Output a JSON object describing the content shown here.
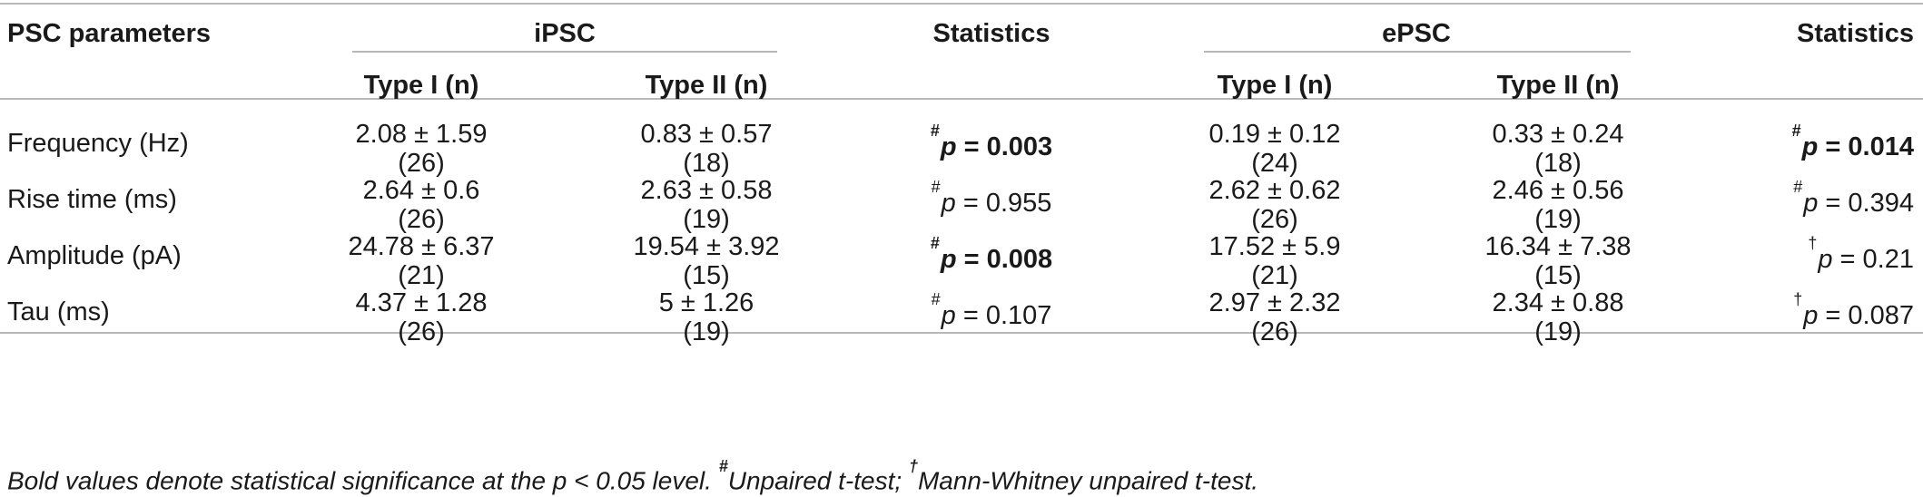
{
  "table": {
    "header": {
      "col_param": "PSC parameters",
      "group_ipsc": "iPSC",
      "group_epsc": "ePSC",
      "stats1": "Statistics",
      "stats2": "Statistics",
      "ipsc_type1": "Type I (n)",
      "ipsc_type2": "Type II (n)",
      "epsc_type1": "Type I (n)",
      "epsc_type2": "Type II (n)"
    },
    "rows": [
      {
        "param": "Frequency (Hz)",
        "ipsc_t1_val": "2.08 ± 1.59",
        "ipsc_t1_n": "(26)",
        "ipsc_t2_val": "0.83 ± 0.57",
        "ipsc_t2_n": "(18)",
        "stat1_mark": "#",
        "stat1_p": "p",
        "stat1_rest": " = 0.003",
        "epsc_t1_val": "0.19 ± 0.12",
        "epsc_t1_n": "(24)",
        "epsc_t2_val": "0.33 ± 0.24",
        "epsc_t2_n": "(18)",
        "stat2_mark": "#",
        "stat2_p": "p",
        "stat2_rest": " = 0.014"
      },
      {
        "param": "Rise time (ms)",
        "ipsc_t1_val": "2.64 ± 0.6",
        "ipsc_t1_n": "(26)",
        "ipsc_t2_val": "2.63 ± 0.58",
        "ipsc_t2_n": "(19)",
        "stat1_mark": "#",
        "stat1_p": "p",
        "stat1_rest": " = 0.955",
        "epsc_t1_val": "2.62 ± 0.62",
        "epsc_t1_n": "(26)",
        "epsc_t2_val": "2.46 ± 0.56",
        "epsc_t2_n": "(19)",
        "stat2_mark": "#",
        "stat2_p": "p",
        "stat2_rest": " = 0.394"
      },
      {
        "param": "Amplitude (pA)",
        "ipsc_t1_val": "24.78 ± 6.37",
        "ipsc_t1_n": "(21)",
        "ipsc_t2_val": "19.54 ± 3.92",
        "ipsc_t2_n": "(15)",
        "stat1_mark": "#",
        "stat1_p": "p",
        "stat1_rest": " = 0.008",
        "epsc_t1_val": "17.52 ± 5.9",
        "epsc_t1_n": "(21)",
        "epsc_t2_val": "16.34 ± 7.38",
        "epsc_t2_n": "(15)",
        "stat2_mark": "†",
        "stat2_p": "p",
        "stat2_rest": " = 0.21"
      },
      {
        "param": "Tau (ms)",
        "ipsc_t1_val": "4.37 ± 1.28",
        "ipsc_t1_n": "(26)",
        "ipsc_t2_val": "5 ± 1.26",
        "ipsc_t2_n": "(19)",
        "stat1_mark": "#",
        "stat1_p": "p",
        "stat1_rest": " = 0.107",
        "epsc_t1_val": "2.97 ± 2.32",
        "epsc_t1_n": "(26)",
        "epsc_t2_val": "2.34 ± 0.88",
        "epsc_t2_n": "(19)",
        "stat2_mark": "†",
        "stat2_p": "p",
        "stat2_rest": " = 0.087"
      }
    ]
  },
  "footnote": {
    "part1": "Bold values denote statistical significance at the ",
    "p": "p",
    "part2": " < 0.05 level. ",
    "mark1": "#",
    "part3": "Unpaired t-test; ",
    "mark2": "†",
    "part4": "Mann-Whitney unpaired t-test."
  }
}
